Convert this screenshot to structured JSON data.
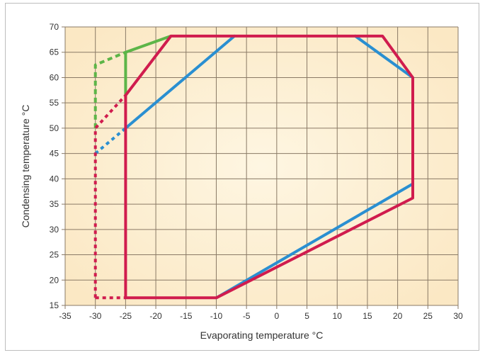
{
  "chart_data": {
    "type": "line",
    "title": "",
    "xlabel": "Evaporating temperature °C",
    "ylabel": "Condensing temperature °C",
    "xlim": [
      -35,
      30
    ],
    "ylim": [
      15,
      70
    ],
    "x_ticks": [
      -35,
      -30,
      -25,
      -20,
      -15,
      -10,
      -5,
      0,
      5,
      10,
      15,
      20,
      25,
      30
    ],
    "y_ticks": [
      15,
      20,
      25,
      30,
      35,
      40,
      45,
      50,
      55,
      60,
      65,
      70
    ],
    "grid": true,
    "legend": "none",
    "colors": {
      "background": "#fcefd3",
      "grid": "#8a7a66",
      "blue": "#2a8fd1",
      "green": "#5db548",
      "red": "#d01c4e"
    },
    "series": [
      {
        "color": "blue",
        "segments": [
          {
            "style": "solid",
            "points": [
              [
                -10,
                16.5
              ],
              [
                22.5,
                39
              ]
            ]
          },
          {
            "style": "solid",
            "points": [
              [
                -25,
                50
              ],
              [
                -7,
                68.2
              ]
            ]
          },
          {
            "style": "solid",
            "points": [
              [
                13,
                68.2
              ],
              [
                22.5,
                60
              ]
            ]
          },
          {
            "style": "dotted",
            "points": [
              [
                -30,
                45
              ],
              [
                -25,
                50
              ]
            ]
          }
        ]
      },
      {
        "color": "green",
        "segments": [
          {
            "style": "solid",
            "points": [
              [
                -25,
                56
              ],
              [
                -25,
                65
              ],
              [
                -17.5,
                68.2
              ]
            ]
          },
          {
            "style": "dashed",
            "points": [
              [
                -30,
                50
              ],
              [
                -30,
                62.5
              ],
              [
                -25,
                65
              ]
            ]
          }
        ]
      },
      {
        "color": "red",
        "segments": [
          {
            "style": "solid",
            "points": [
              [
                -25,
                16.5
              ],
              [
                -10,
                16.5
              ],
              [
                22.5,
                36.2
              ],
              [
                22.5,
                60
              ],
              [
                17.5,
                68.2
              ],
              [
                -17.5,
                68.2
              ],
              [
                -25,
                56.5
              ],
              [
                -25,
                16.5
              ]
            ]
          },
          {
            "style": "dotted",
            "points": [
              [
                -30,
                16.5
              ],
              [
                -25,
                16.5
              ]
            ]
          },
          {
            "style": "dotted",
            "points": [
              [
                -30,
                16.5
              ],
              [
                -30,
                50
              ],
              [
                -25,
                56.5
              ]
            ]
          }
        ]
      }
    ]
  }
}
